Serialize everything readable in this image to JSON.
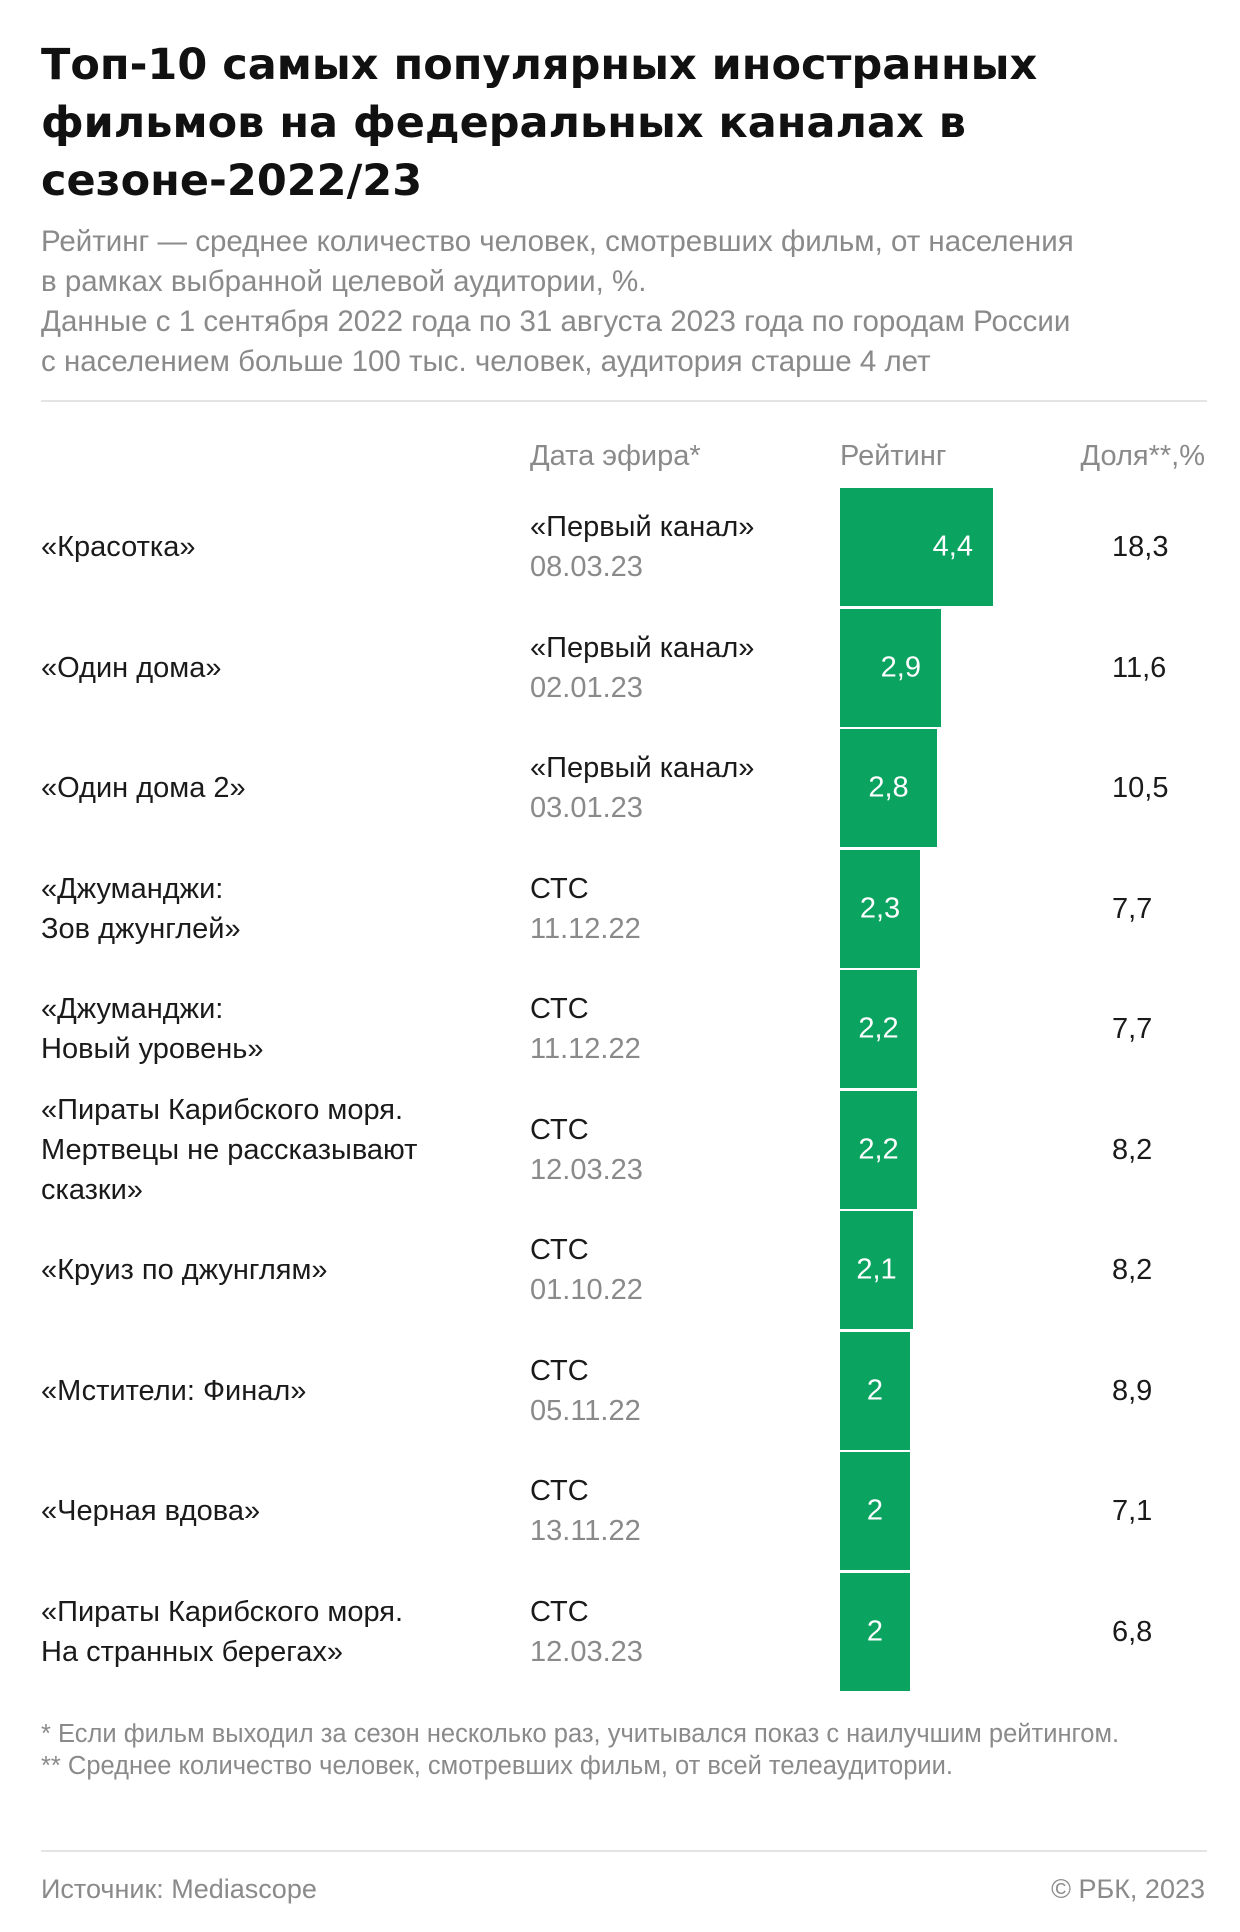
{
  "title": "Топ-10 самых популярных иностранных фильмов на федеральных каналах в сезоне-2022/23",
  "subtitle_lines": [
    "Рейтинг — среднее количество человек, смотревших фильм, от населения",
    "в рамках выбранной целевой аудитории, %.",
    "Данные с 1 сентября 2022 года по 31 августа 2023 года по городам России",
    "с населением больше 100 тыс. человек, аудитория старше 4 лет"
  ],
  "columns": {
    "air_date": "Дата эфира*",
    "rating": "Рейтинг",
    "share": "Доля**,%"
  },
  "chart_data": {
    "type": "bar",
    "orientation": "horizontal",
    "categories": [
      "«Красотка»",
      "«Один дома»",
      "«Один дома 2»",
      "«Джуманджи: Зов джунглей»",
      "«Джуманджи: Новый уровень»",
      "«Пираты Карибского моря. Мертвецы не рассказывают сказки»",
      "«Круиз по джунглям»",
      "«Мстители: Финал»",
      "«Черная вдова»",
      "«Пираты Карибского моря. На странных берегах»"
    ],
    "rows": [
      {
        "film_lines": [
          "«Красотка»"
        ],
        "channel": "«Первый канал»",
        "date": "08.03.23",
        "rating": 4.4,
        "rating_label": "4,4",
        "share": "18,3"
      },
      {
        "film_lines": [
          "«Один дома»"
        ],
        "channel": "«Первый канал»",
        "date": "02.01.23",
        "rating": 2.9,
        "rating_label": "2,9",
        "share": "11,6"
      },
      {
        "film_lines": [
          "«Один дома 2»"
        ],
        "channel": "«Первый канал»",
        "date": "03.01.23",
        "rating": 2.8,
        "rating_label": "2,8",
        "share": "10,5"
      },
      {
        "film_lines": [
          "«Джуманджи:",
          "Зов джунглей»"
        ],
        "channel": "СТС",
        "date": "11.12.22",
        "rating": 2.3,
        "rating_label": "2,3",
        "share": "7,7"
      },
      {
        "film_lines": [
          "«Джуманджи:",
          "Новый уровень»"
        ],
        "channel": "СТС",
        "date": "11.12.22",
        "rating": 2.2,
        "rating_label": "2,2",
        "share": "7,7"
      },
      {
        "film_lines": [
          "«Пираты Карибского моря.",
          "Мертвецы не рассказывают",
          "сказки»"
        ],
        "channel": "СТС",
        "date": "12.03.23",
        "rating": 2.2,
        "rating_label": "2,2",
        "share": "8,2"
      },
      {
        "film_lines": [
          "«Круиз по джунглям»"
        ],
        "channel": "СТС",
        "date": "01.10.22",
        "rating": 2.1,
        "rating_label": "2,1",
        "share": "8,2"
      },
      {
        "film_lines": [
          "«Мстители: Финал»"
        ],
        "channel": "СТС",
        "date": "05.11.22",
        "rating": 2,
        "rating_label": "2",
        "share": "8,9"
      },
      {
        "film_lines": [
          "«Черная вдова»"
        ],
        "channel": "СТС",
        "date": "13.11.22",
        "rating": 2,
        "rating_label": "2",
        "share": "7,1"
      },
      {
        "film_lines": [
          "«Пираты Карибского моря.",
          "На странных берегах»"
        ],
        "channel": "СТС",
        "date": "12.03.23",
        "rating": 2,
        "rating_label": "2",
        "share": "6,8"
      }
    ],
    "bar_color": "#0aa360"
  },
  "footnotes": [
    "* Если фильм выходил за сезон несколько раз, учитывался показ с наилучшим рейтингом.",
    "** Среднее количество человек, смотревших фильм, от всей телеаудитории."
  ],
  "source": "Источник: Mediascope",
  "copyright": "© РБК, 2023"
}
